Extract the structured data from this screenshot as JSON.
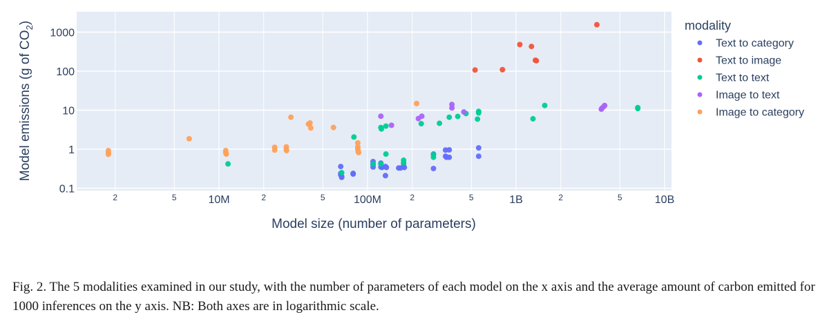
{
  "chart_data": {
    "type": "scatter",
    "title": "",
    "xlabel": "Model size (number of parameters)",
    "ylabel_main": "Model emissions (g of CO",
    "ylabel_sub": "2",
    "ylabel_end": ")",
    "xscale": "log",
    "yscale": "log",
    "xlim": [
      1300000,
      11000000000
    ],
    "ylim": [
      0.09,
      2500
    ],
    "x_major_ticks": [
      {
        "value": 10000000,
        "label": "10M"
      },
      {
        "value": 100000000,
        "label": "100M"
      },
      {
        "value": 1000000000,
        "label": "1B"
      },
      {
        "value": 10000000000,
        "label": "10B"
      }
    ],
    "x_minor_ticks": [
      {
        "value": 2000000,
        "label": "2"
      },
      {
        "value": 5000000,
        "label": "5"
      },
      {
        "value": 20000000,
        "label": "2"
      },
      {
        "value": 50000000,
        "label": "5"
      },
      {
        "value": 200000000,
        "label": "2"
      },
      {
        "value": 500000000,
        "label": "5"
      },
      {
        "value": 2000000000,
        "label": "2"
      },
      {
        "value": 5000000000,
        "label": "5"
      }
    ],
    "y_ticks": [
      {
        "value": 0.1,
        "label": "0.1"
      },
      {
        "value": 1,
        "label": "1"
      },
      {
        "value": 10,
        "label": "10"
      },
      {
        "value": 100,
        "label": "100"
      },
      {
        "value": 1000,
        "label": "1000"
      }
    ],
    "grid": true,
    "legend": {
      "title": "modality",
      "placement": "right"
    },
    "series": [
      {
        "name": "Text to category",
        "color": "#636efa",
        "points": [
          [
            66000000,
            0.36
          ],
          [
            66000000,
            0.24
          ],
          [
            66000000,
            0.22
          ],
          [
            67000000,
            0.2
          ],
          [
            67000000,
            0.19
          ],
          [
            80000000,
            0.24
          ],
          [
            80000000,
            0.23
          ],
          [
            109000000,
            0.48
          ],
          [
            109000000,
            0.4
          ],
          [
            109000000,
            0.35
          ],
          [
            123000000,
            0.44
          ],
          [
            123000000,
            0.35
          ],
          [
            125000000,
            0.34
          ],
          [
            132000000,
            0.36
          ],
          [
            132000000,
            0.21
          ],
          [
            134000000,
            0.34
          ],
          [
            162000000,
            0.33
          ],
          [
            167000000,
            0.33
          ],
          [
            175000000,
            0.43
          ],
          [
            175000000,
            0.36
          ],
          [
            177000000,
            0.34
          ],
          [
            278000000,
            0.75
          ],
          [
            278000000,
            0.32
          ],
          [
            335000000,
            0.95
          ],
          [
            335000000,
            0.66
          ],
          [
            340000000,
            0.62
          ],
          [
            355000000,
            0.96
          ],
          [
            355000000,
            0.62
          ],
          [
            560000000,
            1.08
          ],
          [
            560000000,
            0.66
          ]
        ]
      },
      {
        "name": "Text to image",
        "color": "#ef553b",
        "points": [
          [
            530000000,
            107
          ],
          [
            810000000,
            109
          ],
          [
            1060000000,
            480
          ],
          [
            1270000000,
            430
          ],
          [
            1350000000,
            190
          ],
          [
            1370000000,
            185
          ],
          [
            3500000000,
            1550
          ]
        ]
      },
      {
        "name": "Text to text",
        "color": "#00cc96",
        "points": [
          [
            11500000,
            0.42
          ],
          [
            67000000,
            0.25
          ],
          [
            81000000,
            2.05
          ],
          [
            109000000,
            0.42
          ],
          [
            123000000,
            0.42
          ],
          [
            123000000,
            3.6
          ],
          [
            124000000,
            3.3
          ],
          [
            133000000,
            3.9
          ],
          [
            133000000,
            0.75
          ],
          [
            175000000,
            0.52
          ],
          [
            175000000,
            0.45
          ],
          [
            230000000,
            4.5
          ],
          [
            278000000,
            0.72
          ],
          [
            278000000,
            0.62
          ],
          [
            305000000,
            4.6
          ],
          [
            355000000,
            6.6
          ],
          [
            405000000,
            6.9
          ],
          [
            460000000,
            8.2
          ],
          [
            560000000,
            9.3
          ],
          [
            560000000,
            8.5
          ],
          [
            550000000,
            5.9
          ],
          [
            1300000000,
            6.0
          ],
          [
            1560000000,
            13.2
          ],
          [
            6600000000,
            11.6
          ],
          [
            6600000000,
            11.0
          ]
        ]
      },
      {
        "name": "Image to text",
        "color": "#ab63fa",
        "points": [
          [
            123000000,
            7.0
          ],
          [
            145000000,
            4.1
          ],
          [
            220000000,
            6.1
          ],
          [
            232000000,
            7.0
          ],
          [
            370000000,
            14.0
          ],
          [
            370000000,
            11.4
          ],
          [
            445000000,
            9.0
          ],
          [
            3750000000,
            10.6
          ],
          [
            3800000000,
            11.3
          ],
          [
            3900000000,
            12.5
          ],
          [
            3950000000,
            13.2
          ]
        ]
      },
      {
        "name": "Image to category",
        "color": "#fea15a",
        "points": [
          [
            1800000,
            0.92
          ],
          [
            1800000,
            0.82
          ],
          [
            1800000,
            0.74
          ],
          [
            6300000,
            1.85
          ],
          [
            11100000,
            0.92
          ],
          [
            11100000,
            0.82
          ],
          [
            11200000,
            0.75
          ],
          [
            23700000,
            1.12
          ],
          [
            23700000,
            0.95
          ],
          [
            28400000,
            1.15
          ],
          [
            28400000,
            0.98
          ],
          [
            28500000,
            0.92
          ],
          [
            30500000,
            6.6
          ],
          [
            40000000,
            4.4
          ],
          [
            41000000,
            4.7
          ],
          [
            41500000,
            3.5
          ],
          [
            59000000,
            3.6
          ],
          [
            86000000,
            1.45
          ],
          [
            86000000,
            1.15
          ],
          [
            86000000,
            1.0
          ],
          [
            86500000,
            0.88
          ],
          [
            87000000,
            0.82
          ],
          [
            214000000,
            14.8
          ]
        ]
      }
    ]
  },
  "caption": "Fig. 2.  The 5 modalities examined in our study, with the number of parameters of each model on the x axis and the average amount of carbon emitted for 1000 inferences on the y axis. NB: Both axes are in logarithmic scale."
}
